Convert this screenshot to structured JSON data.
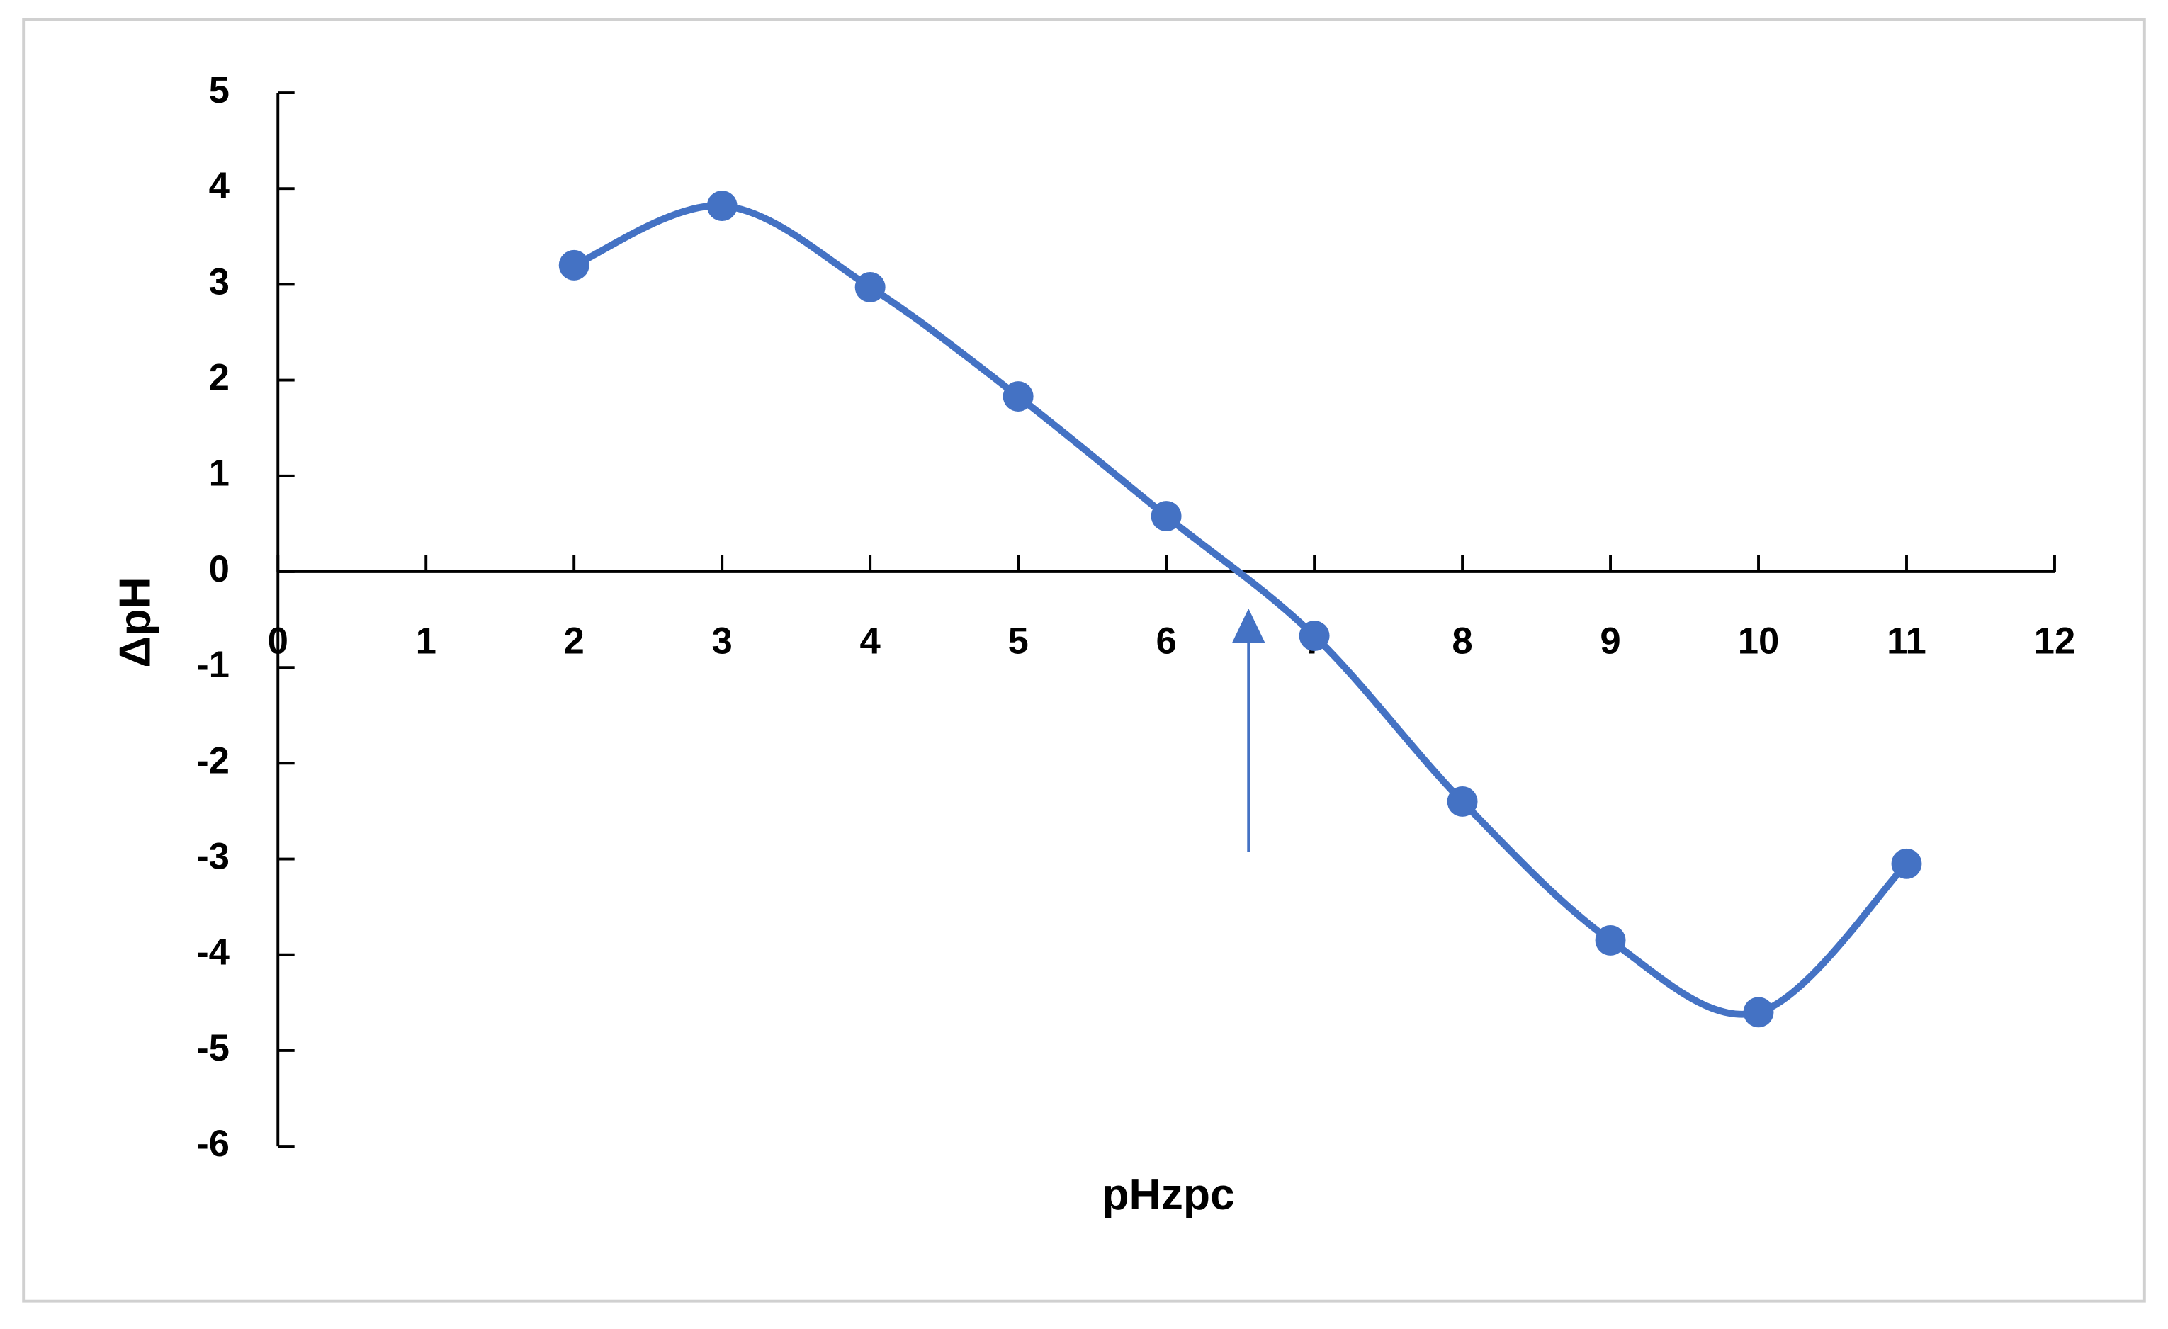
{
  "chart_data": {
    "type": "line",
    "xlabel": "pHzpc",
    "ylabel": "ΔpH",
    "x": [
      2,
      3,
      4,
      5,
      6,
      7,
      8,
      9,
      10,
      11
    ],
    "values": [
      3.2,
      3.82,
      2.97,
      1.83,
      0.58,
      -0.67,
      -2.4,
      -3.85,
      -4.6,
      -3.05
    ],
    "color": "#4472c4",
    "smooth": true,
    "markers": true,
    "xlim": [
      0,
      12
    ],
    "xticks": [
      0,
      1,
      2,
      3,
      4,
      5,
      6,
      7,
      8,
      9,
      10,
      11,
      12
    ],
    "ylim": [
      -6,
      5
    ],
    "yticks": [
      -6,
      -5,
      -4,
      -3,
      -2,
      -1,
      0,
      1,
      2,
      3,
      4,
      5
    ]
  }
}
